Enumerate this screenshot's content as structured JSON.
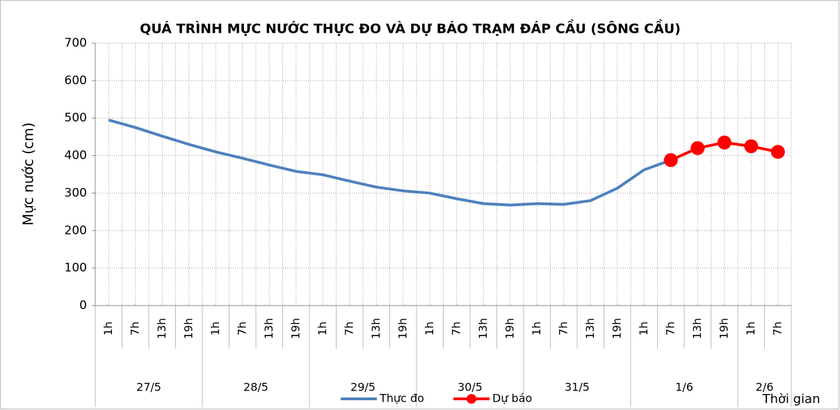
{
  "chart_data": {
    "type": "line",
    "title": "QUÁ TRÌNH MỰC NƯỚC THỰC ĐO VÀ DỰ BÁO TRẠM ĐÁP CẦU (SÔNG CẦU)",
    "y_label": "Mực nước (cm)",
    "x_label": "Thời gian",
    "categories": [
      "1h",
      "7h",
      "13h",
      "19h",
      "1h",
      "7h",
      "13h",
      "19h",
      "1h",
      "7h",
      "13h",
      "19h",
      "1h",
      "7h",
      "13h",
      "19h",
      "1h",
      "7h",
      "13h",
      "19h",
      "1h",
      "7h",
      "13h",
      "19h",
      "1h",
      "7h"
    ],
    "groups": [
      {
        "label": "27/5",
        "span": 4
      },
      {
        "label": "28/5",
        "span": 4
      },
      {
        "label": "29/5",
        "span": 4
      },
      {
        "label": "30/5",
        "span": 4
      },
      {
        "label": "31/5",
        "span": 4
      },
      {
        "label": "1/6",
        "span": 4
      },
      {
        "label": "2/6",
        "span": 2
      }
    ],
    "series": [
      {
        "name": "Thực đo",
        "color": "#4f81bd",
        "marker": false,
        "values": [
          495,
          475,
          452,
          430,
          410,
          393,
          375,
          358,
          349,
          332,
          316,
          306,
          300,
          285,
          272,
          268,
          272,
          270,
          280,
          313,
          362,
          388,
          null,
          null,
          null,
          null
        ]
      },
      {
        "name": "Dự báo",
        "color": "#ff0000",
        "marker": true,
        "values": [
          null,
          null,
          null,
          null,
          null,
          null,
          null,
          null,
          null,
          null,
          null,
          null,
          null,
          null,
          null,
          null,
          null,
          null,
          null,
          null,
          null,
          388,
          420,
          435,
          425,
          410
        ]
      }
    ],
    "ylim": [
      0,
      700
    ],
    "yticks": [
      0,
      100,
      200,
      300,
      400,
      500,
      600,
      700
    ],
    "grid": true
  }
}
